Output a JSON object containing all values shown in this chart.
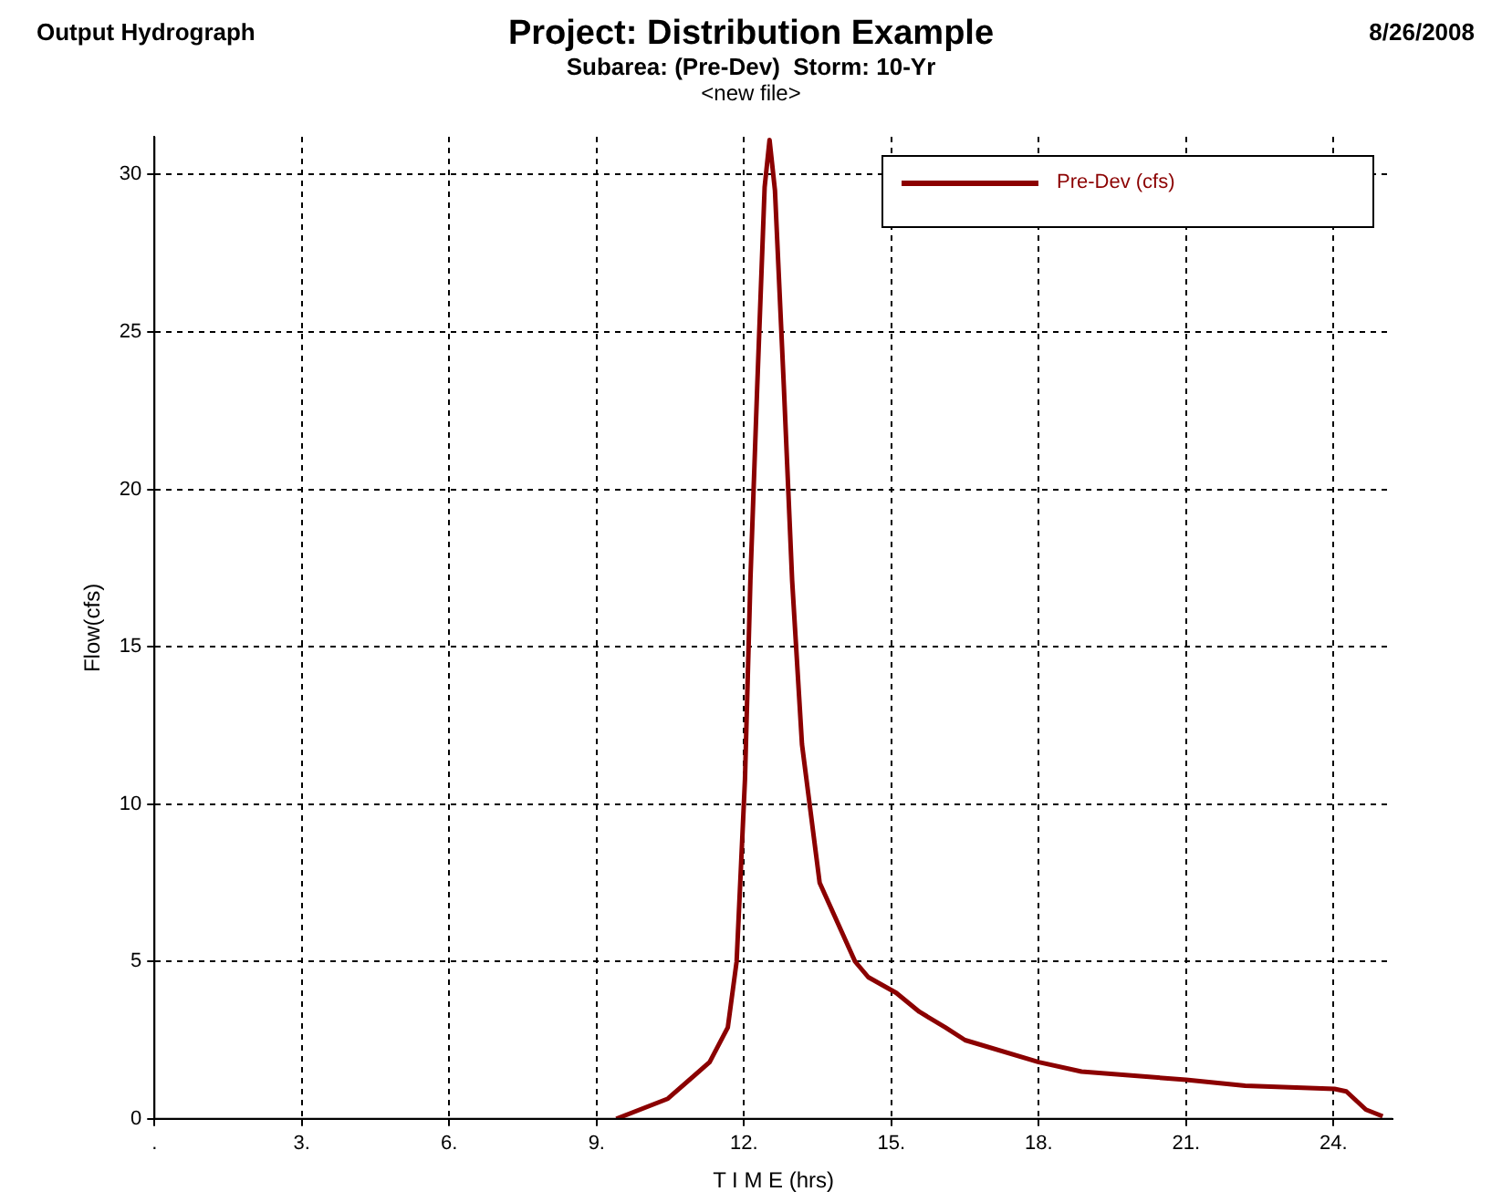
{
  "chart_data": {
    "type": "line",
    "title": "Project: Distribution Example",
    "subtitle": "Subarea: (Pre-Dev)  Storm: 10-Yr",
    "annotations": [
      "Output Hydrograph",
      "8/26/2008",
      "<new file>"
    ],
    "xlabel": "T I M E (hrs)",
    "ylabel": "Flow(cfs)",
    "x": [
      9.4,
      10.45,
      11.3,
      11.67,
      11.85,
      12.02,
      12.13,
      12.27,
      12.42,
      12.52,
      12.63,
      12.81,
      12.98,
      13.18,
      13.54,
      14.26,
      14.53,
      15.1,
      15.57,
      16.1,
      16.5,
      18.0,
      18.87,
      21.0,
      22.2,
      24.02,
      24.26,
      24.66,
      25.0
    ],
    "series": [
      {
        "name": "Pre-Dev (cfs)",
        "color": "#8b0000",
        "values": [
          0,
          0.64,
          1.8,
          2.9,
          5.0,
          10.8,
          17.1,
          23.3,
          29.6,
          31.1,
          29.5,
          23.3,
          17.1,
          11.9,
          7.5,
          5.0,
          4.5,
          4.0,
          3.4,
          2.9,
          2.5,
          1.8,
          1.5,
          1.24,
          1.05,
          0.95,
          0.87,
          0.29,
          0.08
        ]
      }
    ],
    "xlim": [
      0,
      25.2
    ],
    "xticks": [
      {
        "value": 0,
        "label": "."
      },
      {
        "value": 3,
        "label": "3."
      },
      {
        "value": 6,
        "label": "6."
      },
      {
        "value": 9,
        "label": "9."
      },
      {
        "value": 12,
        "label": "12."
      },
      {
        "value": 15,
        "label": "15."
      },
      {
        "value": 18,
        "label": "18."
      },
      {
        "value": 21,
        "label": "21."
      },
      {
        "value": 24,
        "label": "24."
      }
    ],
    "ylim": [
      0,
      31.2
    ],
    "yticks": [
      0,
      5,
      10,
      15,
      20,
      25,
      30
    ],
    "grid": true,
    "legend": "top right",
    "marker": "none",
    "line_style": "solid"
  }
}
